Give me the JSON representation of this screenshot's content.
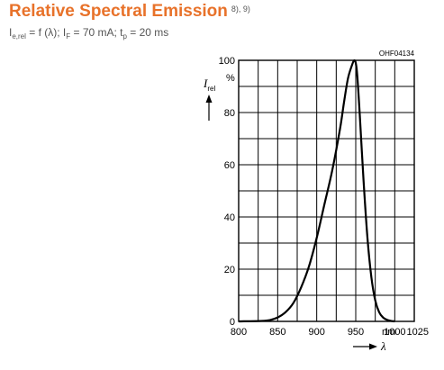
{
  "header": {
    "title": "Relative Spectral Emission",
    "title_refs": "8), 9)",
    "subtitle_parts": {
      "p1": "I",
      "p1_sub": "e,rel",
      "p2": " = f (λ); I",
      "p2_sub": "F",
      "p3": " = 70 mA; t",
      "p3_sub": "p",
      "p4": " = 20 ms"
    }
  },
  "colors": {
    "title": "#e8722a",
    "subtitle": "#555555",
    "grid": "#000000",
    "curve": "#000000"
  },
  "chart_data": {
    "type": "line",
    "figure_code": "OHF04134",
    "y_axis_symbol": "I",
    "y_axis_symbol_sub": "rel",
    "y_unit": "%",
    "x_axis_symbol": "λ",
    "x_unit": "nm",
    "xlim": [
      800,
      1025
    ],
    "ylim": [
      0,
      100
    ],
    "x_ticks": [
      800,
      850,
      900,
      950,
      1000,
      1025
    ],
    "y_ticks": [
      0,
      20,
      40,
      60,
      80,
      100
    ],
    "grid": true,
    "series": [
      {
        "x": [
          800,
          830,
          840,
          850,
          860,
          870,
          880,
          890,
          900,
          910,
          920,
          930,
          935,
          940,
          945,
          948,
          950,
          952,
          955,
          960,
          965,
          970,
          975,
          980,
          985,
          990,
          995,
          1000
        ],
        "y": [
          0,
          0.2,
          0.5,
          1.5,
          3.5,
          7,
          13,
          21,
          32,
          45,
          58,
          74,
          84,
          93,
          98,
          100,
          99,
          94,
          80,
          54,
          32,
          17,
          8,
          3.5,
          1.5,
          0.6,
          0.2,
          0
        ]
      }
    ]
  }
}
